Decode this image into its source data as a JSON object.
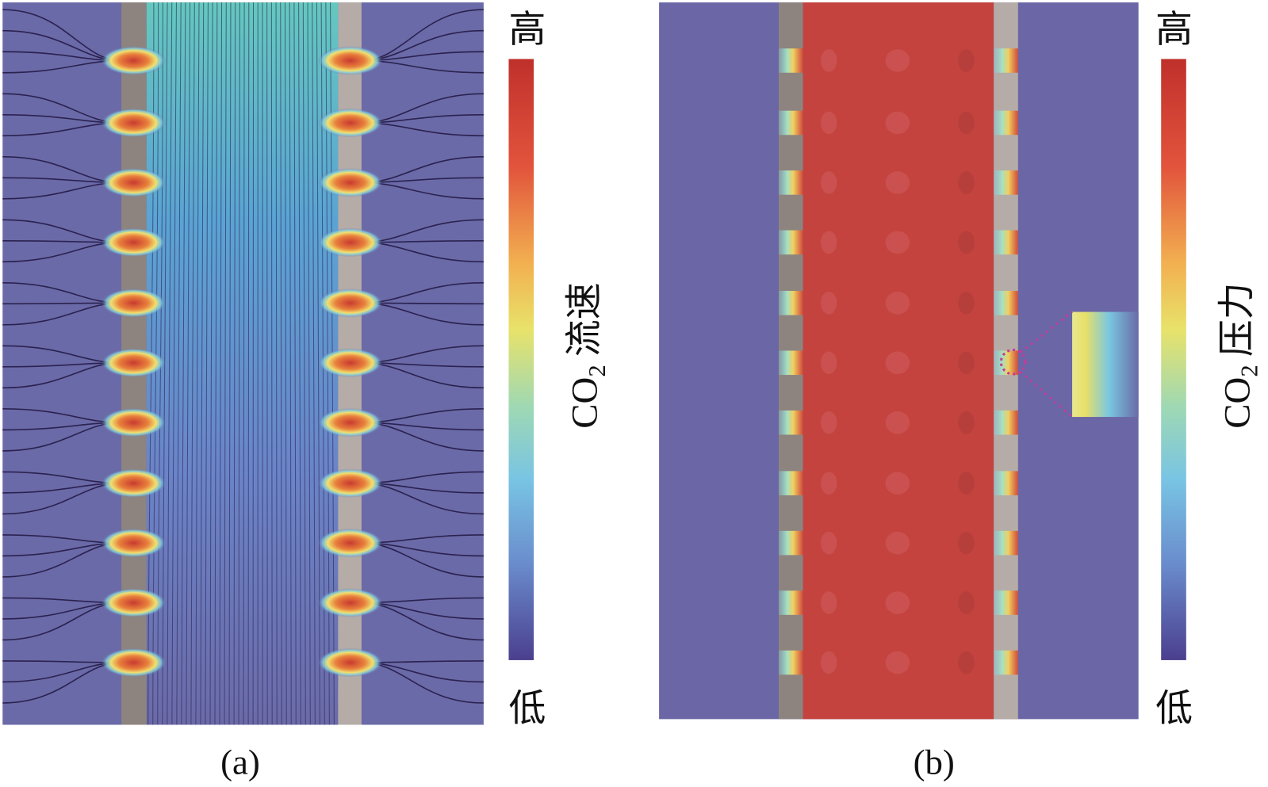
{
  "panels": [
    {
      "label": "(a)",
      "colorbar": {
        "high": "高",
        "low": "低",
        "title": {
          "main": "CO",
          "sub": "2",
          "suffix": "流速"
        }
      }
    },
    {
      "label": "(b)",
      "colorbar": {
        "high": "高",
        "low": "低",
        "title": {
          "main": "CO",
          "sub": "2",
          "suffix": "压力"
        }
      }
    }
  ]
}
